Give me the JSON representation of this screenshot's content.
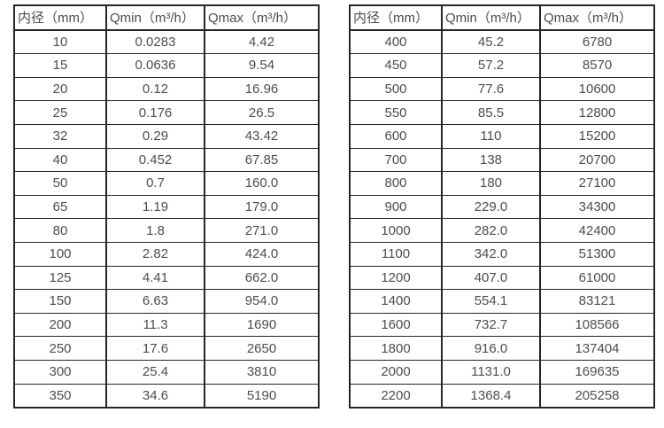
{
  "page": {
    "background_color": "#ffffff",
    "border_color": "#262626",
    "text_color": "#4d4d4d"
  },
  "tables": [
    {
      "name": "flow-rates-dn10-350",
      "headers": [
        "内径（mm）",
        "Qmin（m³/h）",
        "Qmax（m³/h）"
      ],
      "rows": [
        [
          "10",
          "0.0283",
          "4.42"
        ],
        [
          "15",
          "0.0636",
          "9.54"
        ],
        [
          "20",
          "0.12",
          "16.96"
        ],
        [
          "25",
          "0.176",
          "26.5"
        ],
        [
          "32",
          "0.29",
          "43.42"
        ],
        [
          "40",
          "0.452",
          "67.85"
        ],
        [
          "50",
          "0.7",
          "160.0"
        ],
        [
          "65",
          "1.19",
          "179.0"
        ],
        [
          "80",
          "1.8",
          "271.0"
        ],
        [
          "100",
          "2.82",
          "424.0"
        ],
        [
          "125",
          "4.41",
          "662.0"
        ],
        [
          "150",
          "6.63",
          "954.0"
        ],
        [
          "200",
          "11.3",
          "1690"
        ],
        [
          "250",
          "17.6",
          "2650"
        ],
        [
          "300",
          "25.4",
          "3810"
        ],
        [
          "350",
          "34.6",
          "5190"
        ]
      ]
    },
    {
      "name": "flow-rates-dn400-2200",
      "headers": [
        "内径（mm）",
        "Qmin（m³/h）",
        "Qmax（m³/h）"
      ],
      "rows": [
        [
          "400",
          "45.2",
          "6780"
        ],
        [
          "450",
          "57.2",
          "8570"
        ],
        [
          "500",
          "77.6",
          "10600"
        ],
        [
          "550",
          "85.5",
          "12800"
        ],
        [
          "600",
          "110",
          "15200"
        ],
        [
          "700",
          "138",
          "20700"
        ],
        [
          "800",
          "180",
          "27100"
        ],
        [
          "900",
          "229.0",
          "34300"
        ],
        [
          "1000",
          "282.0",
          "42400"
        ],
        [
          "1100",
          "342.0",
          "51300"
        ],
        [
          "1200",
          "407.0",
          "61000"
        ],
        [
          "1400",
          "554.1",
          "83121"
        ],
        [
          "1600",
          "732.7",
          "108566"
        ],
        [
          "1800",
          "916.0",
          "137404"
        ],
        [
          "2000",
          "1131.0",
          "169635"
        ],
        [
          "2200",
          "1368.4",
          "205258"
        ]
      ]
    }
  ]
}
